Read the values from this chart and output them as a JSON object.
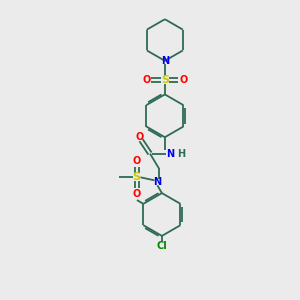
{
  "bg_color": "#ebebeb",
  "bond_color": "#2d6b52",
  "N_color": "#0000ee",
  "O_color": "#ff0000",
  "S_color": "#cccc00",
  "Cl_color": "#008800",
  "lw": 1.3,
  "fig_w": 3.0,
  "fig_h": 3.0,
  "dpi": 100,
  "xlim": [
    0,
    10
  ],
  "ylim": [
    0,
    10
  ]
}
